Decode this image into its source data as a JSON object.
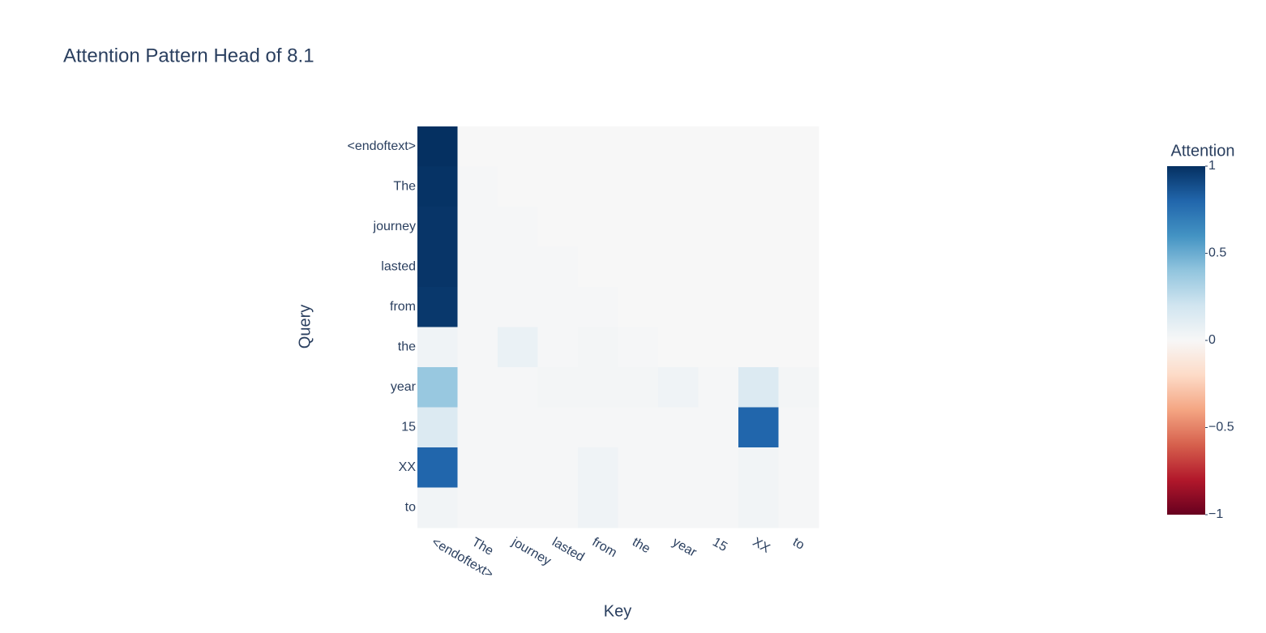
{
  "chart_data": {
    "type": "heatmap",
    "title": "Attention Pattern Head of 8.1",
    "xlabel": "Key",
    "ylabel": "Query",
    "x": [
      "<endoftext>",
      "The",
      "journey",
      "lasted",
      "from",
      "the",
      "year",
      "15",
      "XX",
      "to"
    ],
    "y": [
      "<endoftext>",
      "The",
      "journey",
      "lasted",
      "from",
      "the",
      "year",
      "15",
      "XX",
      "to"
    ],
    "z": [
      [
        1,
        0,
        0,
        0,
        0,
        0,
        0,
        0,
        0,
        0
      ],
      [
        0.99,
        0.01,
        0,
        0,
        0,
        0,
        0,
        0,
        0,
        0
      ],
      [
        0.98,
        0.01,
        0.01,
        0,
        0,
        0,
        0,
        0,
        0,
        0
      ],
      [
        0.98,
        0.01,
        0.01,
        0.01,
        0,
        0,
        0,
        0,
        0,
        0
      ],
      [
        0.97,
        0.01,
        0.01,
        0.01,
        0.01,
        0,
        0,
        0,
        0,
        0
      ],
      [
        0.04,
        0.01,
        0.07,
        0.01,
        0.02,
        0.01,
        0,
        0,
        0,
        0
      ],
      [
        0.38,
        0.01,
        0.01,
        0.02,
        0.02,
        0.02,
        0.04,
        0.01,
        0.14,
        0.02
      ],
      [
        0.14,
        0.01,
        0.01,
        0.01,
        0.01,
        0.01,
        0.01,
        0.01,
        0.8,
        0.01
      ],
      [
        0.8,
        0.01,
        0.01,
        0.01,
        0.04,
        0.01,
        0.01,
        0.01,
        0.03,
        0.01
      ],
      [
        0.03,
        0.01,
        0.01,
        0.01,
        0.04,
        0.01,
        0.01,
        0.01,
        0.03,
        0.01
      ]
    ],
    "colorbar_title": "Attention",
    "zlim": [
      -1,
      1
    ],
    "zticks": [
      1,
      0.5,
      0,
      {
        "value": -0.5,
        "label": "−0.5"
      },
      {
        "value": -1,
        "label": "−1"
      }
    ],
    "colorscale": [
      "#67001f",
      "#b2182b",
      "#d6604d",
      "#f4a582",
      "#fddbc7",
      "#f7f7f7",
      "#d1e5f0",
      "#92c5de",
      "#4393c3",
      "#2166ac",
      "#053061"
    ]
  }
}
